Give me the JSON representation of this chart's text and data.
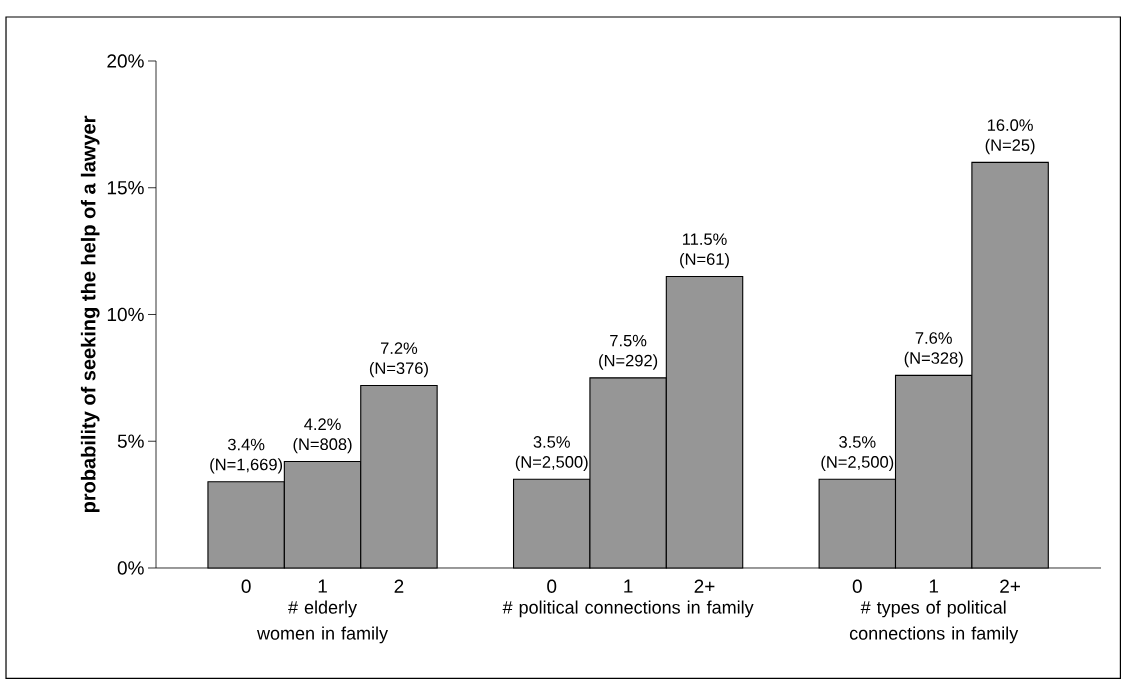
{
  "chart_data": {
    "type": "bar",
    "ylabel": "probability of seeking the help of a lawyer",
    "categories": [
      "0",
      "1",
      "2",
      null,
      "0",
      "1",
      "2+",
      null,
      "0",
      "1",
      "2+"
    ],
    "values": [
      3.4,
      4.2,
      7.2,
      null,
      3.5,
      7.5,
      11.5,
      null,
      3.5,
      7.6,
      16.0
    ],
    "value_labels": [
      "3.4% (N=1,669)",
      "4.2% (N=808)",
      "7.2% (N=376)",
      null,
      "3.5% (N=2,500)",
      "7.5% (N=292)",
      "11.5% (N=61)",
      null,
      "3.5% (N=2,500)",
      "7.6% (N=328)",
      "16.0% (N=25)"
    ],
    "color": "#969696",
    "ylim": [
      0,
      20
    ],
    "yticks": [
      {
        "value": 0,
        "label": "0%"
      },
      {
        "value": 5,
        "label": "5%"
      },
      {
        "value": 10,
        "label": "10%"
      },
      {
        "value": 15,
        "label": "15%"
      },
      {
        "value": 20,
        "label": "20%"
      }
    ],
    "annotations": [
      "# elderly women in family",
      "# political connections in family",
      "# types of political connections in family"
    ]
  }
}
